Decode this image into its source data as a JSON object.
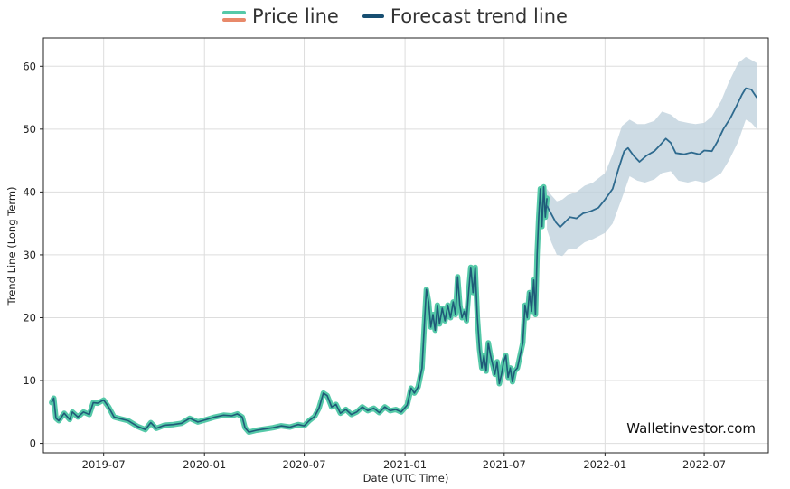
{
  "legend": {
    "price_label": "Price line",
    "forecast_label": "Forecast trend line"
  },
  "watermark": "Walletinvestor.com",
  "colors": {
    "price_outer": "#55c9a8",
    "price_inner": "#1f5a78",
    "forecast": "#2e6a8e",
    "band": "#bccfdb",
    "legend_price_top": "#55c9a8",
    "legend_price_bottom": "#e8896a",
    "legend_forecast": "#174f72",
    "grid": "#dddddd"
  },
  "chart_data": {
    "type": "line",
    "xlabel": "Date (UTC Time)",
    "ylabel": "Trend Line (Long Term)",
    "ylim": [
      -1.5,
      64.5
    ],
    "xlim": [
      "2019-03-13",
      "2022-10-26"
    ],
    "yticks": [
      0,
      10,
      20,
      30,
      40,
      50,
      60
    ],
    "xticks": [
      "2019-07",
      "2020-01",
      "2020-07",
      "2021-01",
      "2021-07",
      "2022-01",
      "2022-07"
    ],
    "xtick_dates": [
      "2019-07-01",
      "2020-01-01",
      "2020-07-01",
      "2021-01-01",
      "2021-07-01",
      "2022-01-01",
      "2022-07-01"
    ],
    "grid": true,
    "legend_position": "top-center",
    "series": [
      {
        "name": "Price line",
        "points": [
          [
            "2019-03-28",
            6.5
          ],
          [
            "2019-04-01",
            7.2
          ],
          [
            "2019-04-05",
            4.0
          ],
          [
            "2019-04-10",
            3.6
          ],
          [
            "2019-04-20",
            4.8
          ],
          [
            "2019-04-30",
            3.8
          ],
          [
            "2019-05-05",
            5.0
          ],
          [
            "2019-05-15",
            4.2
          ],
          [
            "2019-05-25",
            5.0
          ],
          [
            "2019-06-05",
            4.6
          ],
          [
            "2019-06-12",
            6.5
          ],
          [
            "2019-06-20",
            6.4
          ],
          [
            "2019-07-01",
            6.9
          ],
          [
            "2019-07-10",
            5.8
          ],
          [
            "2019-07-20",
            4.2
          ],
          [
            "2019-08-01",
            3.9
          ],
          [
            "2019-08-15",
            3.6
          ],
          [
            "2019-09-01",
            2.7
          ],
          [
            "2019-09-15",
            2.2
          ],
          [
            "2019-09-25",
            3.3
          ],
          [
            "2019-10-05",
            2.4
          ],
          [
            "2019-10-20",
            2.9
          ],
          [
            "2019-11-05",
            3.0
          ],
          [
            "2019-11-20",
            3.2
          ],
          [
            "2019-12-05",
            4.0
          ],
          [
            "2019-12-20",
            3.4
          ],
          [
            "2020-01-05",
            3.8
          ],
          [
            "2020-01-20",
            4.2
          ],
          [
            "2020-02-05",
            4.5
          ],
          [
            "2020-02-20",
            4.4
          ],
          [
            "2020-03-01",
            4.7
          ],
          [
            "2020-03-10",
            4.2
          ],
          [
            "2020-03-15",
            2.5
          ],
          [
            "2020-03-22",
            1.8
          ],
          [
            "2020-04-05",
            2.1
          ],
          [
            "2020-04-20",
            2.3
          ],
          [
            "2020-05-05",
            2.5
          ],
          [
            "2020-05-20",
            2.8
          ],
          [
            "2020-06-05",
            2.6
          ],
          [
            "2020-06-20",
            3.0
          ],
          [
            "2020-07-01",
            2.8
          ],
          [
            "2020-07-10",
            3.6
          ],
          [
            "2020-07-20",
            4.3
          ],
          [
            "2020-07-28",
            5.6
          ],
          [
            "2020-08-05",
            8.0
          ],
          [
            "2020-08-12",
            7.6
          ],
          [
            "2020-08-20",
            5.8
          ],
          [
            "2020-08-28",
            6.2
          ],
          [
            "2020-09-05",
            4.8
          ],
          [
            "2020-09-15",
            5.4
          ],
          [
            "2020-09-25",
            4.6
          ],
          [
            "2020-10-05",
            5.0
          ],
          [
            "2020-10-15",
            5.8
          ],
          [
            "2020-10-25",
            5.2
          ],
          [
            "2020-11-05",
            5.6
          ],
          [
            "2020-11-15",
            4.9
          ],
          [
            "2020-11-25",
            5.8
          ],
          [
            "2020-12-05",
            5.2
          ],
          [
            "2020-12-15",
            5.4
          ],
          [
            "2020-12-25",
            5.0
          ],
          [
            "2021-01-05",
            6.1
          ],
          [
            "2021-01-12",
            8.8
          ],
          [
            "2021-01-18",
            8.0
          ],
          [
            "2021-01-25",
            9.0
          ],
          [
            "2021-02-01",
            12.0
          ],
          [
            "2021-02-06",
            20.0
          ],
          [
            "2021-02-09",
            24.5
          ],
          [
            "2021-02-13",
            22.5
          ],
          [
            "2021-02-17",
            18.5
          ],
          [
            "2021-02-21",
            20.5
          ],
          [
            "2021-02-25",
            18.0
          ],
          [
            "2021-03-01",
            22.0
          ],
          [
            "2021-03-05",
            19.0
          ],
          [
            "2021-03-10",
            21.5
          ],
          [
            "2021-03-15",
            19.5
          ],
          [
            "2021-03-20",
            22.0
          ],
          [
            "2021-03-25",
            20.0
          ],
          [
            "2021-03-30",
            22.5
          ],
          [
            "2021-04-03",
            20.5
          ],
          [
            "2021-04-07",
            26.5
          ],
          [
            "2021-04-11",
            22.0
          ],
          [
            "2021-04-15",
            20.0
          ],
          [
            "2021-04-19",
            21.0
          ],
          [
            "2021-04-23",
            19.5
          ],
          [
            "2021-04-27",
            24.0
          ],
          [
            "2021-05-01",
            28.0
          ],
          [
            "2021-05-05",
            24.0
          ],
          [
            "2021-05-09",
            28.0
          ],
          [
            "2021-05-13",
            20.0
          ],
          [
            "2021-05-17",
            15.0
          ],
          [
            "2021-05-21",
            12.0
          ],
          [
            "2021-05-25",
            14.0
          ],
          [
            "2021-05-29",
            11.5
          ],
          [
            "2021-06-02",
            16.0
          ],
          [
            "2021-06-06",
            14.0
          ],
          [
            "2021-06-10",
            12.5
          ],
          [
            "2021-06-14",
            11.0
          ],
          [
            "2021-06-18",
            13.0
          ],
          [
            "2021-06-22",
            9.5
          ],
          [
            "2021-06-26",
            11.0
          ],
          [
            "2021-06-30",
            13.0
          ],
          [
            "2021-07-04",
            14.0
          ],
          [
            "2021-07-08",
            10.5
          ],
          [
            "2021-07-12",
            12.0
          ],
          [
            "2021-07-16",
            9.8
          ],
          [
            "2021-07-20",
            11.5
          ],
          [
            "2021-07-25",
            12.0
          ],
          [
            "2021-07-30",
            14.0
          ],
          [
            "2021-08-04",
            16.0
          ],
          [
            "2021-08-08",
            22.0
          ],
          [
            "2021-08-12",
            20.0
          ],
          [
            "2021-08-16",
            24.0
          ],
          [
            "2021-08-20",
            21.0
          ],
          [
            "2021-08-24",
            26.0
          ],
          [
            "2021-08-27",
            20.5
          ],
          [
            "2021-08-30",
            30.0
          ],
          [
            "2021-09-02",
            36.0
          ],
          [
            "2021-09-05",
            40.5
          ],
          [
            "2021-09-08",
            34.5
          ],
          [
            "2021-09-11",
            40.8
          ],
          [
            "2021-09-14",
            36.0
          ],
          [
            "2021-09-17",
            39.0
          ]
        ]
      },
      {
        "name": "Forecast trend line",
        "points": [
          [
            "2021-09-17",
            37.8
          ],
          [
            "2021-09-25",
            36.5
          ],
          [
            "2021-10-03",
            35.2
          ],
          [
            "2021-10-11",
            34.4
          ],
          [
            "2021-10-20",
            35.2
          ],
          [
            "2021-10-29",
            36.0
          ],
          [
            "2021-11-10",
            35.8
          ],
          [
            "2021-11-22",
            36.6
          ],
          [
            "2021-12-05",
            36.9
          ],
          [
            "2021-12-20",
            37.5
          ],
          [
            "2022-01-01",
            38.8
          ],
          [
            "2022-01-15",
            40.5
          ],
          [
            "2022-01-25",
            43.5
          ],
          [
            "2022-02-05",
            46.5
          ],
          [
            "2022-02-12",
            47.0
          ],
          [
            "2022-02-22",
            45.8
          ],
          [
            "2022-03-05",
            44.8
          ],
          [
            "2022-03-18",
            45.8
          ],
          [
            "2022-04-01",
            46.5
          ],
          [
            "2022-04-12",
            47.5
          ],
          [
            "2022-04-22",
            48.5
          ],
          [
            "2022-05-01",
            47.8
          ],
          [
            "2022-05-10",
            46.2
          ],
          [
            "2022-05-25",
            46.0
          ],
          [
            "2022-06-08",
            46.3
          ],
          [
            "2022-06-22",
            46.0
          ],
          [
            "2022-07-01",
            46.6
          ],
          [
            "2022-07-15",
            46.5
          ],
          [
            "2022-07-25",
            48.0
          ],
          [
            "2022-08-05",
            50.0
          ],
          [
            "2022-08-18",
            51.8
          ],
          [
            "2022-08-28",
            53.5
          ],
          [
            "2022-09-08",
            55.5
          ],
          [
            "2022-09-15",
            56.5
          ],
          [
            "2022-09-25",
            56.3
          ],
          [
            "2022-10-05",
            55.0
          ]
        ],
        "band": [
          [
            "2021-09-17",
            34.0,
            40.5
          ],
          [
            "2021-09-25",
            32.0,
            39.5
          ],
          [
            "2021-10-05",
            30.0,
            38.5
          ],
          [
            "2021-10-15",
            29.8,
            38.8
          ],
          [
            "2021-10-25",
            30.8,
            39.5
          ],
          [
            "2021-11-10",
            31.0,
            40.0
          ],
          [
            "2021-11-25",
            32.0,
            41.0
          ],
          [
            "2021-12-10",
            32.5,
            41.5
          ],
          [
            "2022-01-01",
            33.5,
            43.0
          ],
          [
            "2022-01-15",
            35.0,
            46.0
          ],
          [
            "2022-02-01",
            39.0,
            50.5
          ],
          [
            "2022-02-15",
            42.5,
            51.5
          ],
          [
            "2022-03-01",
            41.8,
            50.8
          ],
          [
            "2022-03-15",
            41.5,
            50.8
          ],
          [
            "2022-04-01",
            42.0,
            51.3
          ],
          [
            "2022-04-15",
            43.0,
            52.8
          ],
          [
            "2022-05-01",
            43.3,
            52.3
          ],
          [
            "2022-05-15",
            41.8,
            51.3
          ],
          [
            "2022-06-01",
            41.5,
            51.0
          ],
          [
            "2022-06-15",
            41.8,
            50.8
          ],
          [
            "2022-07-01",
            41.5,
            51.0
          ],
          [
            "2022-07-15",
            42.0,
            52.0
          ],
          [
            "2022-08-01",
            43.0,
            54.5
          ],
          [
            "2022-08-15",
            45.0,
            57.5
          ],
          [
            "2022-09-01",
            48.0,
            60.5
          ],
          [
            "2022-09-15",
            51.5,
            61.5
          ],
          [
            "2022-09-25",
            51.0,
            61.0
          ],
          [
            "2022-10-05",
            50.0,
            60.5
          ]
        ]
      }
    ]
  }
}
